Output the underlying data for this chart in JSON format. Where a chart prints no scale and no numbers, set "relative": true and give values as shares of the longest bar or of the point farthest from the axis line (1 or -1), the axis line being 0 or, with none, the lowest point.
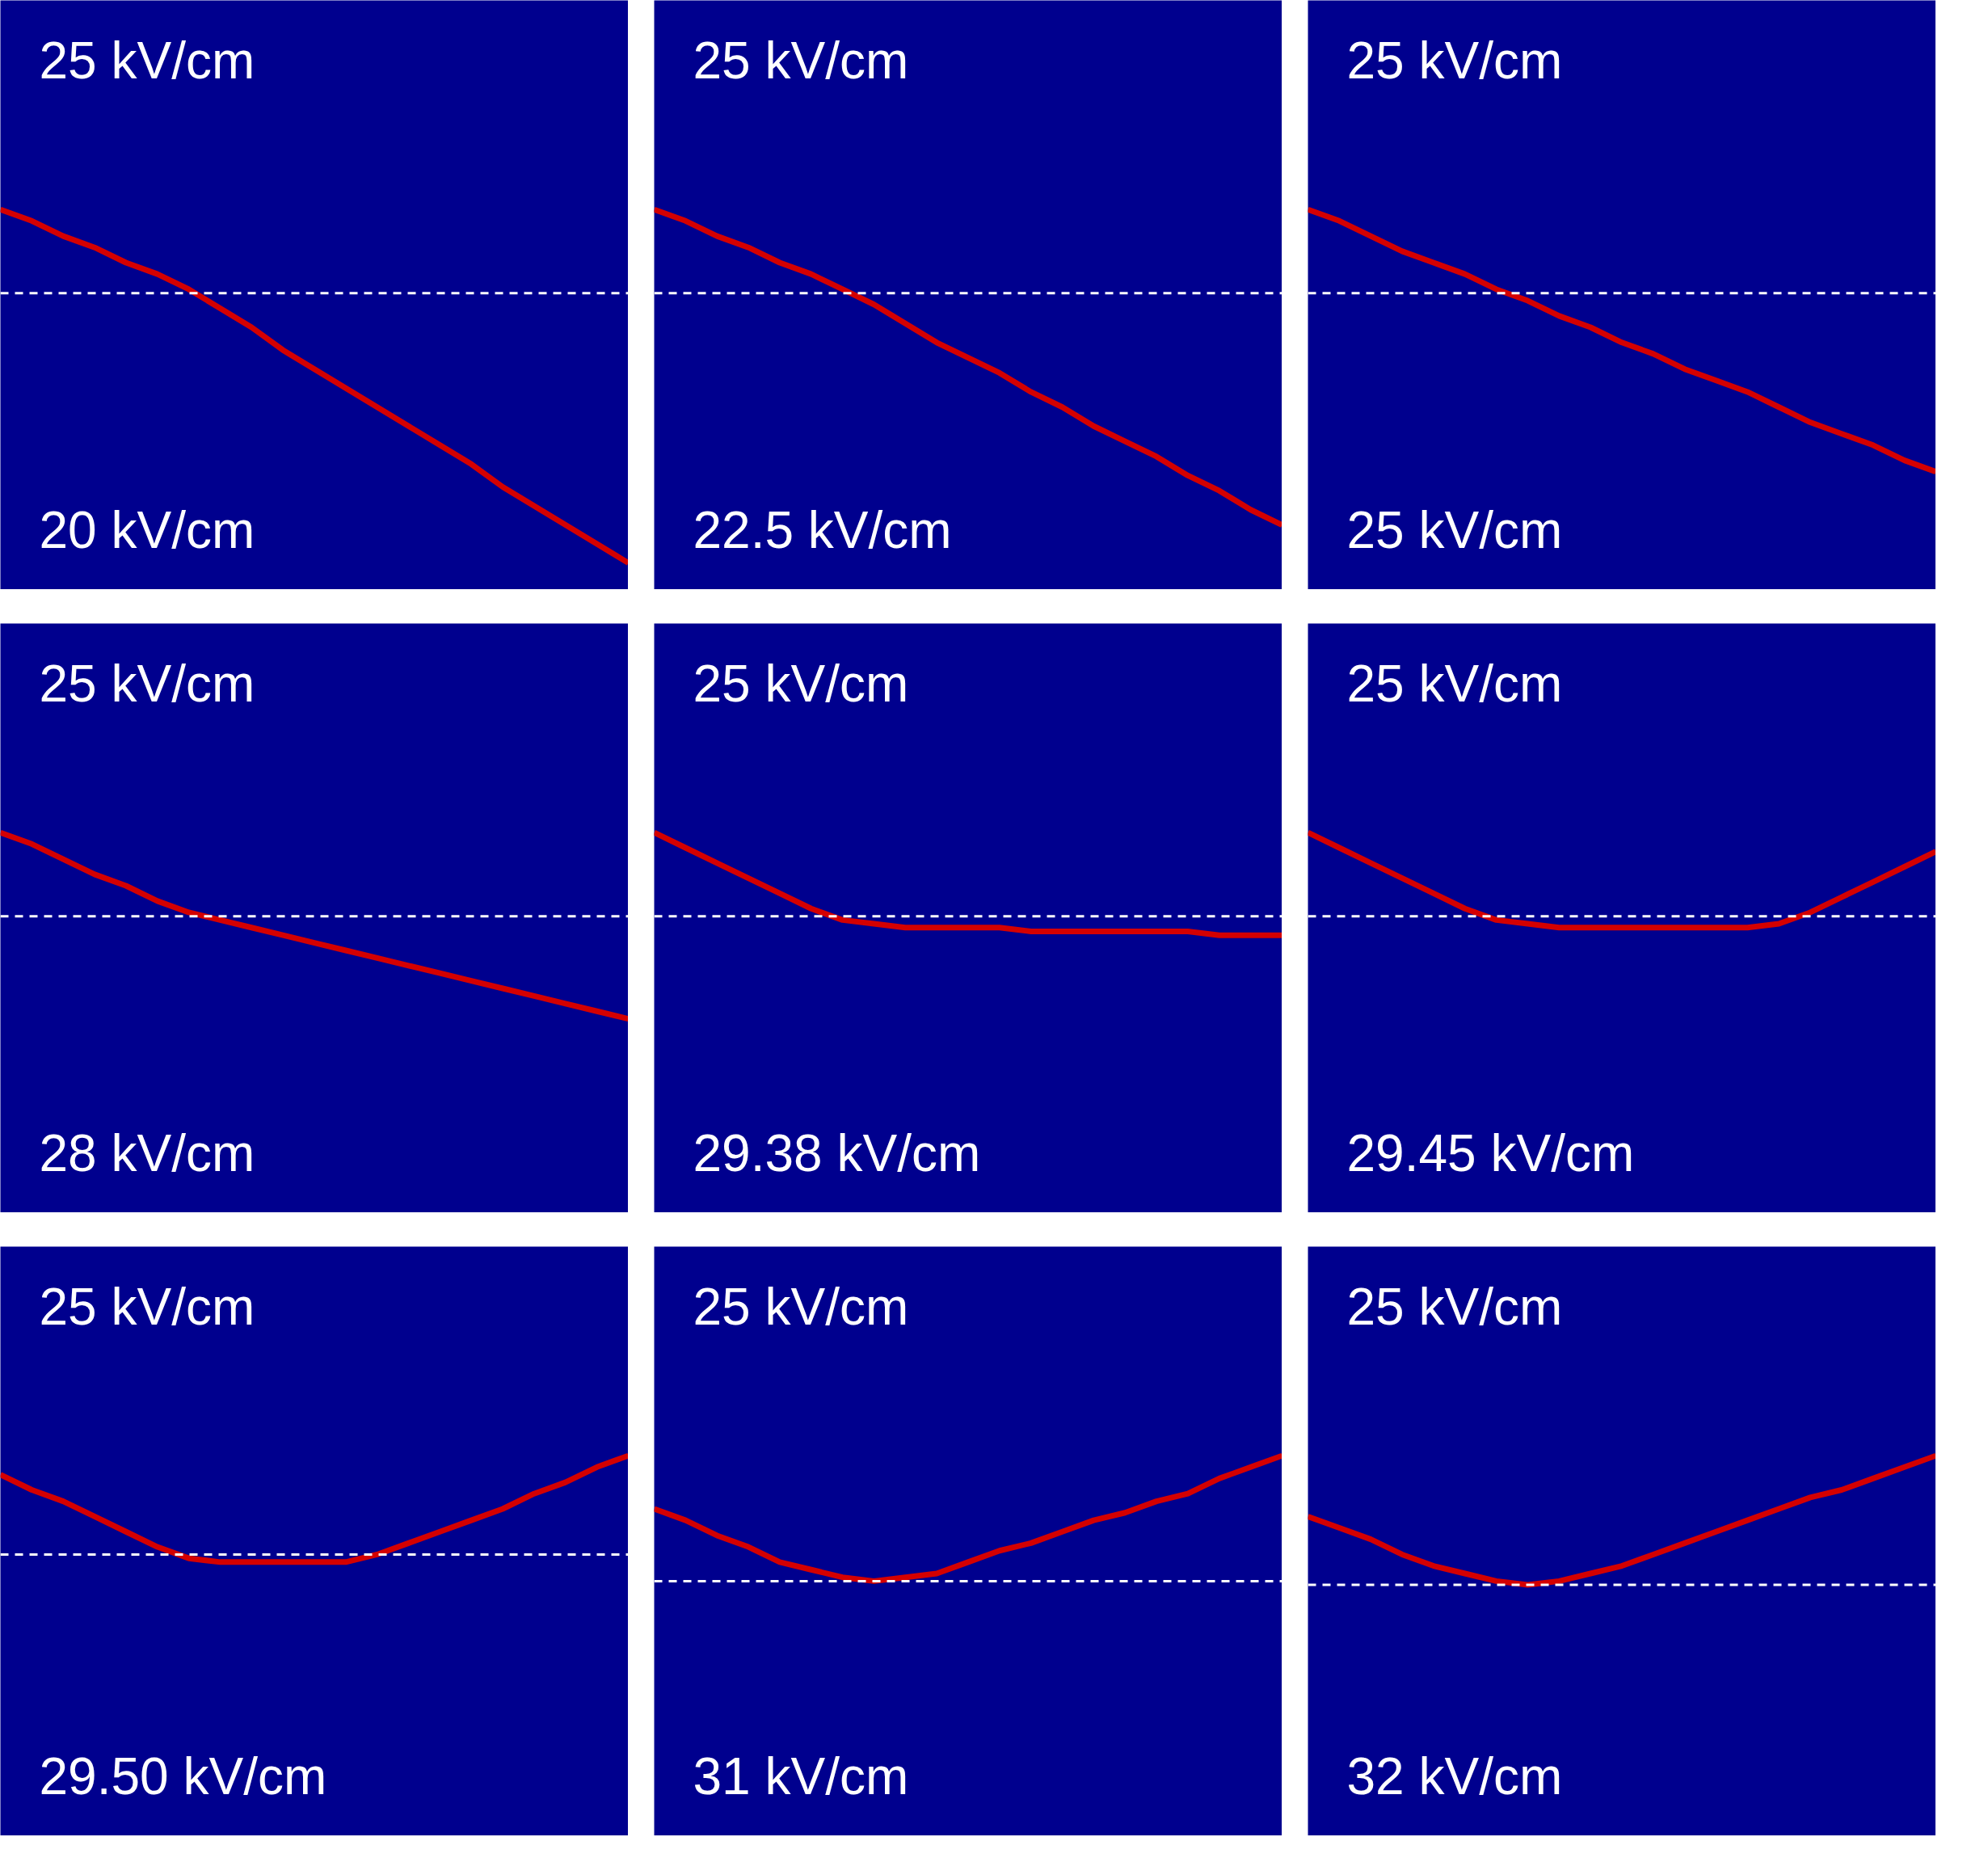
{
  "chart_data": [
    {
      "type": "line",
      "relative": true,
      "annotations": [
        "25 kV/cm",
        "20 kV/cm"
      ],
      "ref_lines": [
        {
          "axis": "y",
          "value": 0.78,
          "color": "#ffffff",
          "line_style": "dashed"
        }
      ],
      "categories": [
        null,
        null,
        null,
        null,
        null,
        null,
        null,
        null,
        null,
        null,
        null,
        null,
        null,
        null,
        null,
        null,
        null,
        null,
        null,
        null,
        null
      ],
      "series": [
        {
          "color": "#d40000",
          "values": [
            1,
            0.97,
            0.93,
            0.9,
            0.86,
            0.83,
            0.79,
            0.74,
            0.69,
            0.63,
            0.58,
            0.53,
            0.48,
            0.43,
            0.38,
            0.33,
            0.27,
            0.22,
            0.17,
            0.12,
            0.07
          ]
        }
      ]
    },
    {
      "type": "line",
      "relative": true,
      "annotations": [
        "25 kV/cm",
        "22.5 kV/cm"
      ],
      "ref_lines": [
        {
          "axis": "y",
          "value": 0.78,
          "color": "#ffffff",
          "line_style": "dashed"
        }
      ],
      "categories": [
        null,
        null,
        null,
        null,
        null,
        null,
        null,
        null,
        null,
        null,
        null,
        null,
        null,
        null,
        null,
        null,
        null,
        null,
        null,
        null,
        null
      ],
      "series": [
        {
          "color": "#d40000",
          "values": [
            1,
            0.97,
            0.93,
            0.9,
            0.86,
            0.83,
            0.79,
            0.75,
            0.7,
            0.65,
            0.61,
            0.57,
            0.52,
            0.48,
            0.43,
            0.39,
            0.35,
            0.3,
            0.26,
            0.21,
            0.17
          ]
        }
      ]
    },
    {
      "type": "line",
      "relative": true,
      "annotations": [
        "25 kV/cm",
        "25 kV/cm"
      ],
      "ref_lines": [
        {
          "axis": "y",
          "value": 0.78,
          "color": "#ffffff",
          "line_style": "dashed"
        }
      ],
      "categories": [
        null,
        null,
        null,
        null,
        null,
        null,
        null,
        null,
        null,
        null,
        null,
        null,
        null,
        null,
        null,
        null,
        null,
        null,
        null,
        null,
        null
      ],
      "series": [
        {
          "color": "#d40000",
          "values": [
            1,
            0.97,
            0.93,
            0.89,
            0.86,
            0.83,
            0.79,
            0.76,
            0.72,
            0.69,
            0.65,
            0.62,
            0.58,
            0.55,
            0.52,
            0.48,
            0.44,
            0.41,
            0.38,
            0.34,
            0.31
          ]
        }
      ]
    },
    {
      "type": "line",
      "relative": true,
      "annotations": [
        "25 kV/cm",
        "28 kV/cm"
      ],
      "ref_lines": [
        {
          "axis": "y",
          "value": 0.78,
          "color": "#ffffff",
          "line_style": "dashed"
        }
      ],
      "categories": [
        null,
        null,
        null,
        null,
        null,
        null,
        null,
        null,
        null,
        null,
        null,
        null,
        null,
        null,
        null,
        null,
        null,
        null,
        null,
        null,
        null
      ],
      "series": [
        {
          "color": "#d40000",
          "values": [
            1,
            0.97,
            0.93,
            0.89,
            0.86,
            0.82,
            0.79,
            0.77,
            0.75,
            0.73,
            0.71,
            0.69,
            0.67,
            0.65,
            0.63,
            0.61,
            0.59,
            0.57,
            0.55,
            0.53,
            0.51
          ]
        }
      ]
    },
    {
      "type": "line",
      "relative": true,
      "annotations": [
        "25 kV/cm",
        "29.38 kV/cm"
      ],
      "ref_lines": [
        {
          "axis": "y",
          "value": 0.78,
          "color": "#ffffff",
          "line_style": "dashed"
        }
      ],
      "categories": [
        null,
        null,
        null,
        null,
        null,
        null,
        null,
        null,
        null,
        null,
        null,
        null,
        null,
        null,
        null,
        null,
        null,
        null,
        null,
        null,
        null
      ],
      "series": [
        {
          "color": "#d40000",
          "values": [
            1,
            0.96,
            0.92,
            0.88,
            0.84,
            0.8,
            0.77,
            0.76,
            0.75,
            0.75,
            0.75,
            0.75,
            0.74,
            0.74,
            0.74,
            0.74,
            0.74,
            0.74,
            0.73,
            0.73,
            0.73
          ]
        }
      ]
    },
    {
      "type": "line",
      "relative": true,
      "annotations": [
        "25 kV/cm",
        "29.45 kV/cm"
      ],
      "ref_lines": [
        {
          "axis": "y",
          "value": 0.78,
          "color": "#ffffff",
          "line_style": "dashed"
        }
      ],
      "categories": [
        null,
        null,
        null,
        null,
        null,
        null,
        null,
        null,
        null,
        null,
        null,
        null,
        null,
        null,
        null,
        null,
        null,
        null,
        null,
        null,
        null
      ],
      "series": [
        {
          "color": "#d40000",
          "values": [
            1,
            0.96,
            0.92,
            0.88,
            0.84,
            0.8,
            0.77,
            0.76,
            0.75,
            0.75,
            0.75,
            0.75,
            0.75,
            0.75,
            0.75,
            0.76,
            0.79,
            0.83,
            0.87,
            0.91,
            0.95
          ]
        }
      ]
    },
    {
      "type": "line",
      "relative": true,
      "annotations": [
        "25 kV/cm",
        "29.50 kV/cm"
      ],
      "ref_lines": [
        {
          "axis": "y",
          "value": 0.74,
          "color": "#ffffff",
          "line_style": "dashed"
        }
      ],
      "categories": [
        null,
        null,
        null,
        null,
        null,
        null,
        null,
        null,
        null,
        null,
        null,
        null,
        null,
        null,
        null,
        null,
        null,
        null,
        null,
        null,
        null
      ],
      "series": [
        {
          "color": "#d40000",
          "values": [
            0.95,
            0.91,
            0.88,
            0.84,
            0.8,
            0.76,
            0.73,
            0.72,
            0.72,
            0.72,
            0.72,
            0.72,
            0.74,
            0.77,
            0.8,
            0.83,
            0.86,
            0.9,
            0.93,
            0.97,
            1
          ]
        }
      ]
    },
    {
      "type": "line",
      "relative": true,
      "annotations": [
        "25 kV/cm",
        "31 kV/cm"
      ],
      "ref_lines": [
        {
          "axis": "y",
          "value": 0.67,
          "color": "#ffffff",
          "line_style": "dashed"
        }
      ],
      "categories": [
        null,
        null,
        null,
        null,
        null,
        null,
        null,
        null,
        null,
        null,
        null,
        null,
        null,
        null,
        null,
        null,
        null,
        null,
        null,
        null,
        null
      ],
      "series": [
        {
          "color": "#d40000",
          "values": [
            0.86,
            0.83,
            0.79,
            0.76,
            0.72,
            0.7,
            0.68,
            0.67,
            0.68,
            0.69,
            0.72,
            0.75,
            0.77,
            0.8,
            0.83,
            0.85,
            0.88,
            0.9,
            0.94,
            0.97,
            1
          ]
        }
      ]
    },
    {
      "type": "line",
      "relative": true,
      "annotations": [
        "25 kV/cm",
        "32 kV/cm"
      ],
      "ref_lines": [
        {
          "axis": "y",
          "value": 0.66,
          "color": "#ffffff",
          "line_style": "dashed"
        }
      ],
      "categories": [
        null,
        null,
        null,
        null,
        null,
        null,
        null,
        null,
        null,
        null,
        null,
        null,
        null,
        null,
        null,
        null,
        null,
        null,
        null,
        null,
        null
      ],
      "series": [
        {
          "color": "#d40000",
          "values": [
            0.84,
            0.81,
            0.78,
            0.74,
            0.71,
            0.69,
            0.67,
            0.66,
            0.67,
            0.69,
            0.71,
            0.74,
            0.77,
            0.8,
            0.83,
            0.86,
            0.89,
            0.91,
            0.94,
            0.97,
            1
          ]
        }
      ]
    }
  ]
}
